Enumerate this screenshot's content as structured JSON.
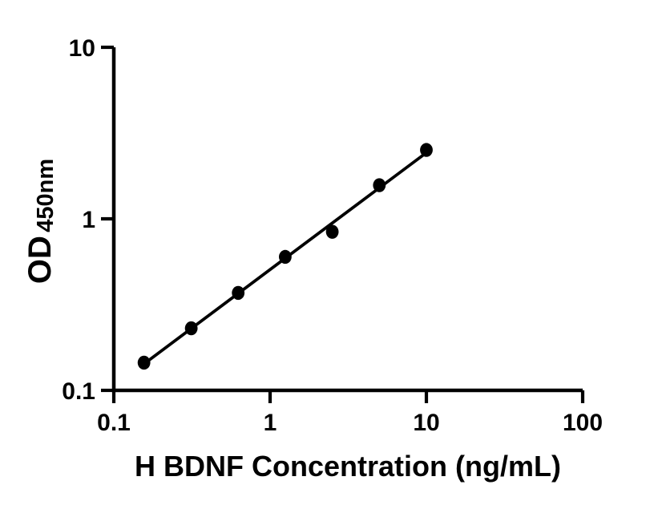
{
  "chart_data": {
    "type": "scatter",
    "subtype": "log-log ELISA standard curve with straight fit line",
    "title": "",
    "xlabel": "H BDNF Concentration (ng/mL)",
    "ylabel": {
      "main": "OD",
      "sub": "450nm"
    },
    "x_scale": "log10",
    "y_scale": "log10",
    "xlim": [
      0.1,
      100
    ],
    "ylim": [
      0.1,
      10
    ],
    "x_ticks": [
      {
        "value": 0.1,
        "label": "0.1"
      },
      {
        "value": 1,
        "label": "1"
      },
      {
        "value": 10,
        "label": "10"
      },
      {
        "value": 100,
        "label": "100"
      }
    ],
    "y_ticks": [
      {
        "value": 0.1,
        "label": "0.1"
      },
      {
        "value": 1,
        "label": "1"
      },
      {
        "value": 10,
        "label": "10"
      }
    ],
    "points": [
      {
        "x": 0.156,
        "y": 0.145
      },
      {
        "x": 0.313,
        "y": 0.23
      },
      {
        "x": 0.625,
        "y": 0.37
      },
      {
        "x": 1.25,
        "y": 0.6
      },
      {
        "x": 2.5,
        "y": 0.84
      },
      {
        "x": 5,
        "y": 1.57
      },
      {
        "x": 10,
        "y": 2.52
      }
    ],
    "fit_line": {
      "kind": "least-squares linear fit in log-log space",
      "x_start": 0.156,
      "x_end": 10
    },
    "layout": {
      "grid": false,
      "legend": false,
      "frame": "left-and-bottom-axes-only",
      "x_tick_direction": "down-outward",
      "y_tick_direction": "left-outward"
    },
    "style": {
      "marker_shape": "filled-circle",
      "marker_color": "#000000",
      "line_color": "#000000",
      "axis_color": "#000000",
      "text_color": "#000000",
      "background": "#ffffff"
    }
  }
}
